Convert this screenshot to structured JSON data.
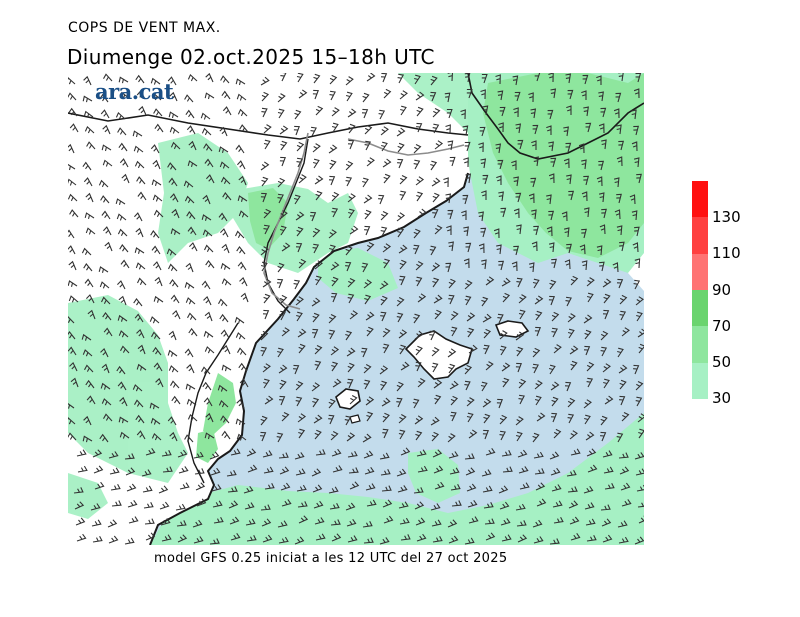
{
  "title": "COPS DE VENT MAX.",
  "subtitle": "Diumenge  02.oct.2025  15–18h UTC",
  "logo": "ara.cat",
  "footer": "model GFS 0.25 iniciat a les 12 UTC del 27 oct 2025",
  "colors": {
    "sea": "#c3dcec",
    "land": "#ffffff",
    "coast": "#1a1a1a",
    "border": "#8c8c8c",
    "barb": "#333333",
    "logo": "#1a4f86"
  },
  "legend": {
    "labels": [
      "130",
      "110",
      "90",
      "70",
      "50",
      "30"
    ],
    "bands": [
      {
        "from": 30,
        "to": 50,
        "color": "#a6f0c4"
      },
      {
        "from": 50,
        "to": 70,
        "color": "#8ee69e"
      },
      {
        "from": 70,
        "to": 90,
        "color": "#6ad46e"
      },
      {
        "from": 90,
        "to": 110,
        "color": "#ff7373"
      },
      {
        "from": 110,
        "to": 130,
        "color": "#ff4040"
      },
      {
        "from": 130,
        "to": 150,
        "color": "#ff1010"
      }
    ]
  }
}
